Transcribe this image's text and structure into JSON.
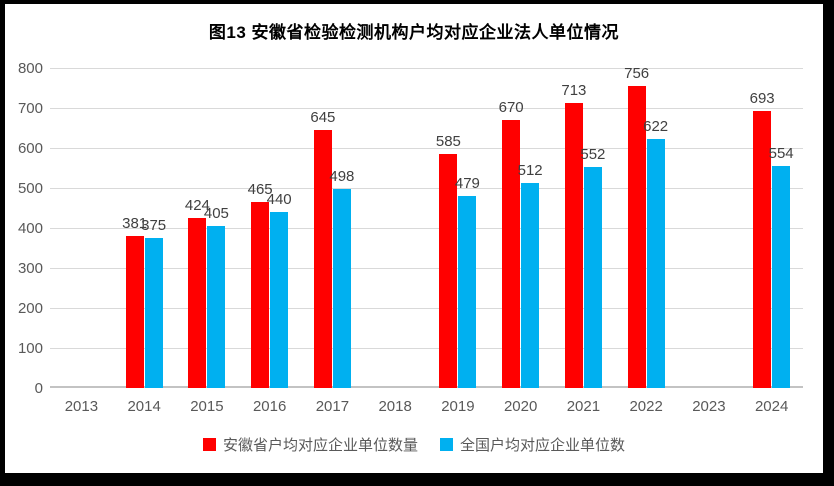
{
  "title": "图13  安徽省检验检测机构户均对应企业法人单位情况",
  "chart_data": {
    "type": "bar",
    "categories": [
      "2013",
      "2014",
      "2015",
      "2016",
      "2017",
      "2018",
      "2019",
      "2020",
      "2021",
      "2022",
      "2023",
      "2024"
    ],
    "series": [
      {
        "name": "安徽省户均对应企业单位数量",
        "color": "#FF0000",
        "values": [
          null,
          381,
          424,
          465,
          645,
          null,
          585,
          670,
          713,
          756,
          null,
          693
        ]
      },
      {
        "name": "全国户均对应企业单位数",
        "color": "#00B0F0",
        "values": [
          null,
          375,
          405,
          440,
          498,
          null,
          479,
          512,
          552,
          622,
          null,
          554
        ]
      }
    ],
    "xlabel": "",
    "ylabel": "",
    "ylim": [
      0,
      800
    ],
    "ytick_step": 100,
    "grid": true,
    "legend_position": "bottom",
    "data_labels": true,
    "colors": {
      "gridline": "#D9D9D9",
      "axis_line": "#C3C3C3",
      "tick_label": "#595959",
      "data_label": "#404040",
      "title": "#000000",
      "frame_border": "#000000",
      "background": "#FFFFFF"
    }
  }
}
